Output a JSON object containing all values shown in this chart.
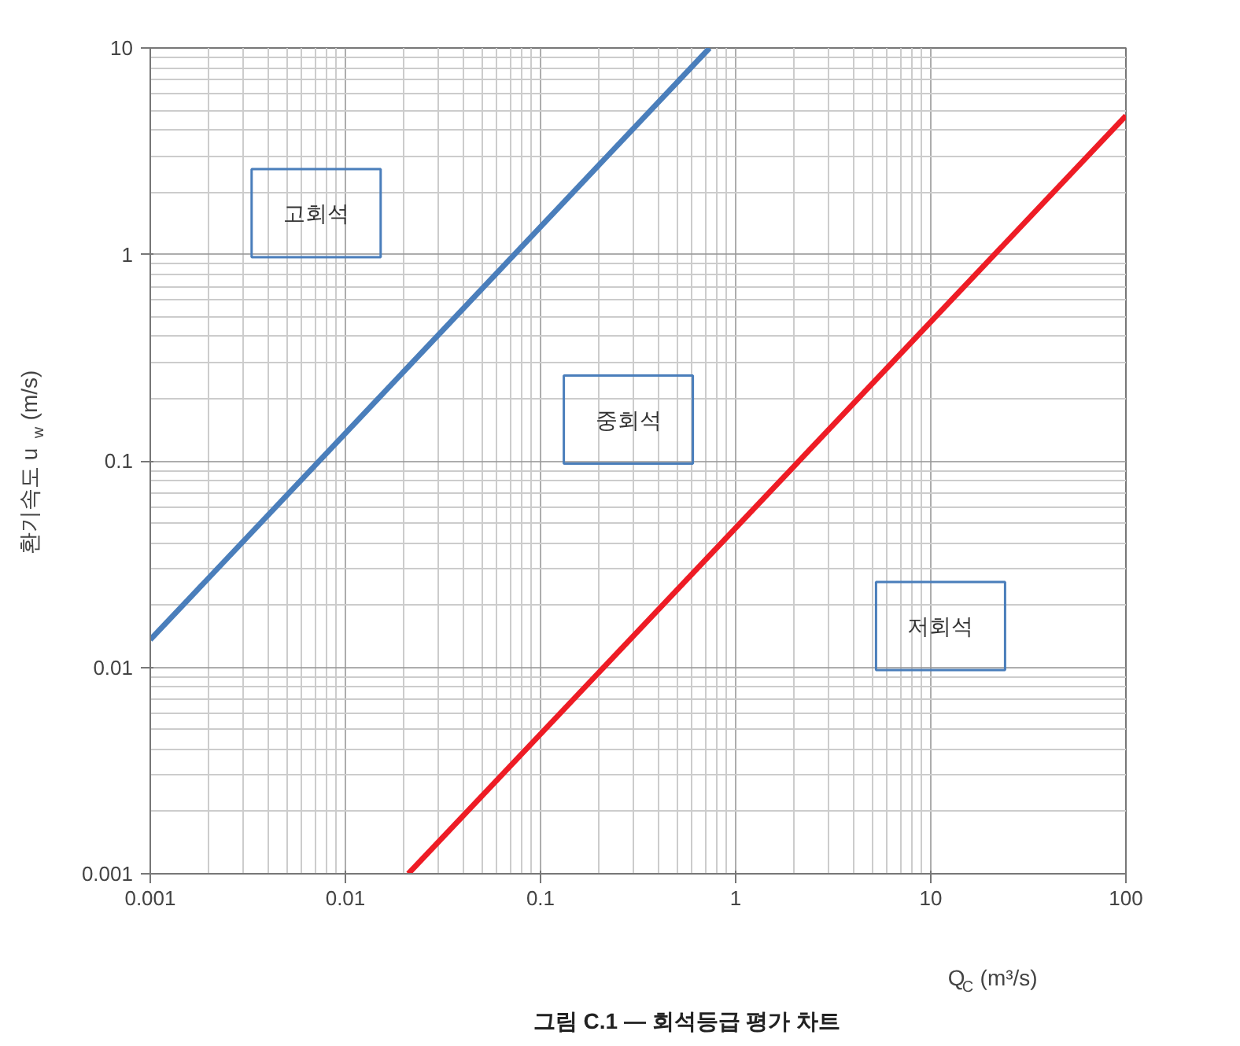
{
  "chart_data": {
    "type": "line",
    "title": "그림 C.1 — 회석등급 평가 차트",
    "xlabel": "Q$_{C}$ (m³/s)",
    "ylabel": "환기속도 u$_{w}$ (m/s)",
    "log": "xy",
    "grid": true,
    "marker": "none",
    "line_style": "solid",
    "xlim": [
      0.001,
      100
    ],
    "ylim": [
      0.001,
      10
    ],
    "xticks": [
      0.001,
      0.01,
      0.1,
      1,
      10,
      100
    ],
    "yticks": [
      0.001,
      0.01,
      0.1,
      1,
      10
    ],
    "series": [
      {
        "color": "#4a7ebb",
        "x": [
          0.001,
          0.735
        ],
        "values": [
          0.0136,
          10
        ]
      },
      {
        "color": "#ee1c25",
        "x": [
          0.021,
          100
        ],
        "values": [
          0.001,
          4.7
        ]
      }
    ],
    "annotations": [
      "고회석",
      "중회석",
      "저회석"
    ]
  }
}
